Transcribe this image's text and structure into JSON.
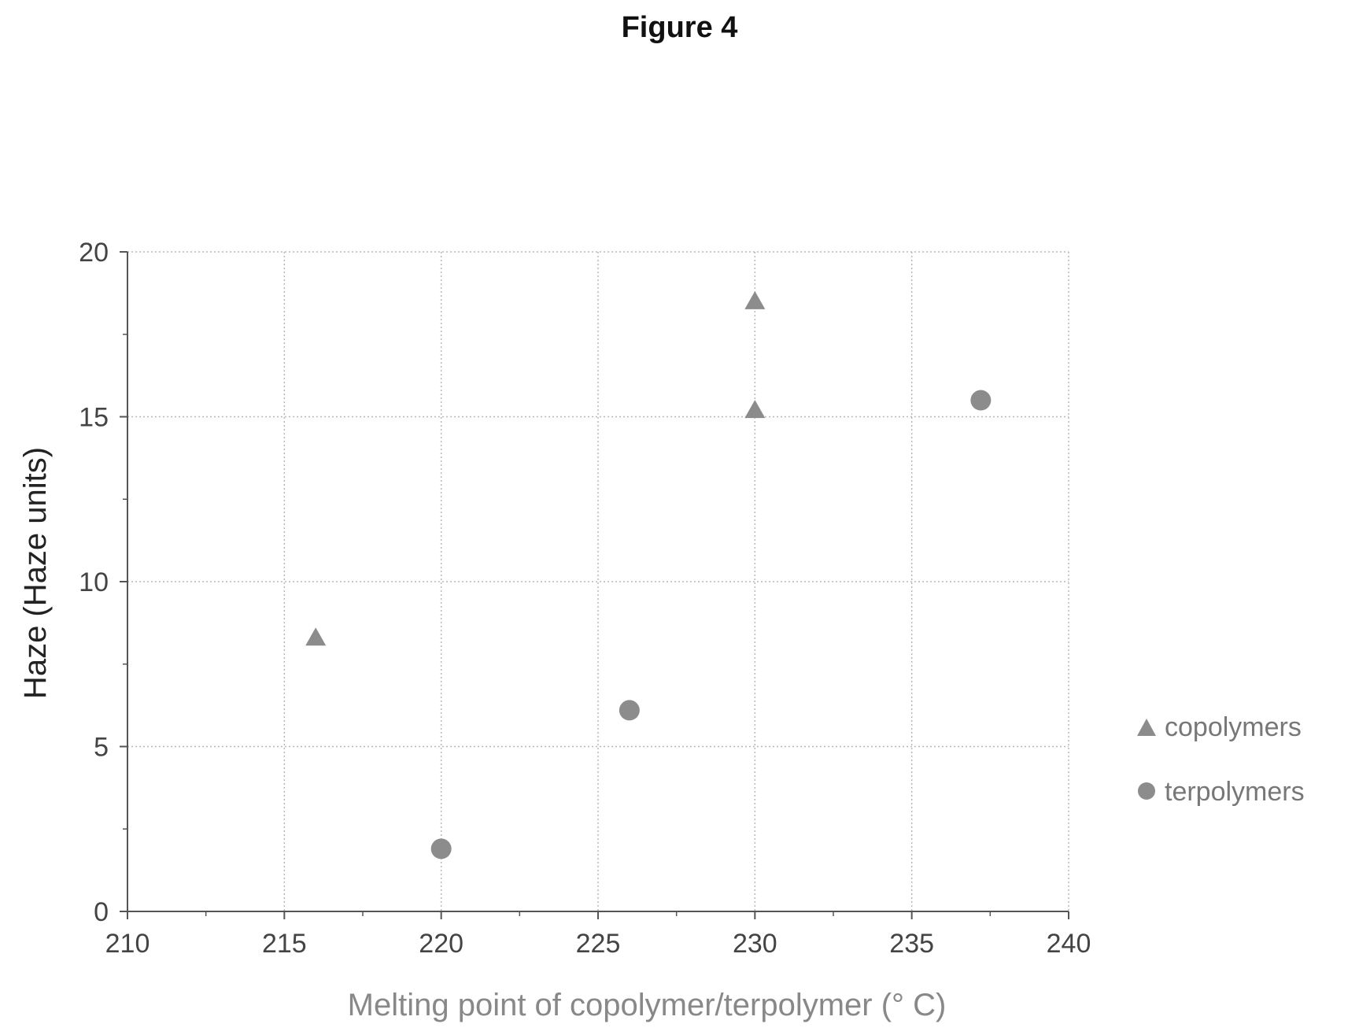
{
  "figure": {
    "title": "Figure 4"
  },
  "chart_data": {
    "type": "scatter",
    "xlabel": "Melting point of copolymer/terpolymer (° C)",
    "ylabel": "Haze (Haze units)",
    "xlim": [
      210,
      240
    ],
    "ylim": [
      0,
      20
    ],
    "xticks": [
      210,
      215,
      220,
      225,
      230,
      235,
      240
    ],
    "yticks": [
      0,
      5,
      10,
      15,
      20
    ],
    "grid": true,
    "legend_position": "right",
    "series": [
      {
        "name": "copolymers",
        "marker": "triangle",
        "color": "#8c8c8c",
        "points": [
          {
            "x": 216,
            "y": 8.3
          },
          {
            "x": 230,
            "y": 18.5
          },
          {
            "x": 230,
            "y": 15.2
          }
        ]
      },
      {
        "name": "terpolymers",
        "marker": "circle",
        "color": "#8c8c8c",
        "points": [
          {
            "x": 220,
            "y": 1.9
          },
          {
            "x": 226,
            "y": 6.1
          },
          {
            "x": 237.2,
            "y": 15.5
          }
        ]
      }
    ]
  }
}
